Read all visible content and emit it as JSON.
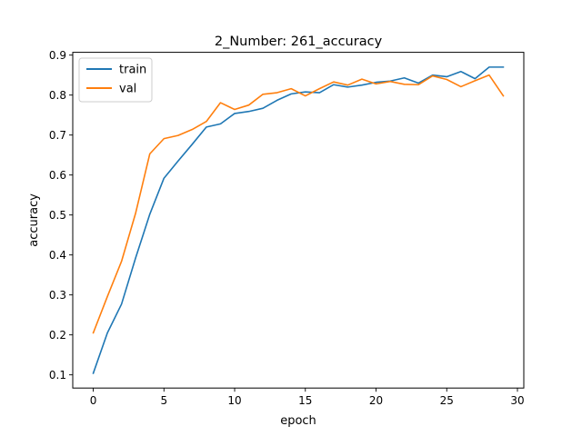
{
  "chart_data": {
    "type": "line",
    "title": "2_Number: 261_accuracy",
    "xlabel": "epoch",
    "ylabel": "accuracy",
    "xlim": [
      -1.45,
      30.45
    ],
    "ylim": [
      0.067,
      0.907
    ],
    "xticks": [
      0,
      5,
      10,
      15,
      20,
      25,
      30
    ],
    "yticks": [
      0.1,
      0.2,
      0.3,
      0.4,
      0.5,
      0.6,
      0.7,
      0.8,
      0.9
    ],
    "xtick_labels": [
      "0",
      "5",
      "10",
      "15",
      "20",
      "25",
      "30"
    ],
    "ytick_labels": [
      "0.1",
      "0.2",
      "0.3",
      "0.4",
      "0.5",
      "0.6",
      "0.7",
      "0.8",
      "0.9"
    ],
    "grid": false,
    "legend_position": "top-left",
    "x": [
      0,
      1,
      2,
      3,
      4,
      5,
      6,
      7,
      8,
      9,
      10,
      11,
      12,
      13,
      14,
      15,
      16,
      17,
      18,
      19,
      20,
      21,
      22,
      23,
      24,
      25,
      26,
      27,
      28,
      29
    ],
    "series": [
      {
        "name": "train",
        "color": "#1f77b4",
        "values": [
          0.104,
          0.205,
          0.277,
          0.393,
          0.502,
          0.592,
          0.635,
          0.677,
          0.72,
          0.728,
          0.754,
          0.759,
          0.767,
          0.787,
          0.803,
          0.808,
          0.806,
          0.826,
          0.82,
          0.825,
          0.832,
          0.835,
          0.843,
          0.83,
          0.85,
          0.846,
          0.859,
          0.841,
          0.87,
          0.87
        ]
      },
      {
        "name": "val",
        "color": "#ff7f0e",
        "values": [
          0.205,
          0.296,
          0.384,
          0.505,
          0.653,
          0.691,
          0.699,
          0.714,
          0.734,
          0.781,
          0.764,
          0.775,
          0.802,
          0.806,
          0.816,
          0.798,
          0.816,
          0.833,
          0.825,
          0.84,
          0.828,
          0.834,
          0.827,
          0.826,
          0.848,
          0.839,
          0.821,
          0.836,
          0.85,
          0.798
        ]
      }
    ]
  }
}
